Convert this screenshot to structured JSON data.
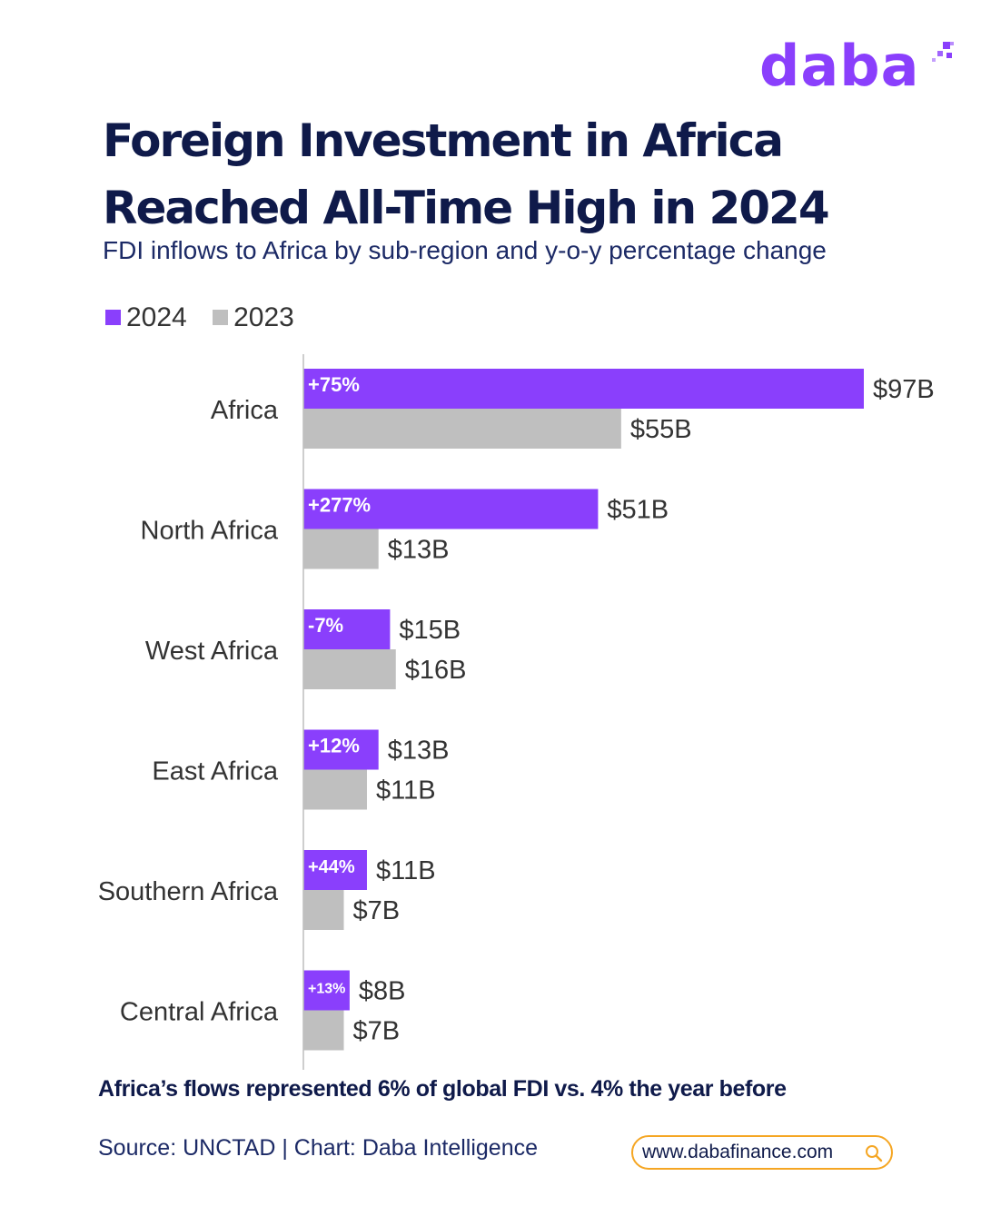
{
  "brand": {
    "logo_text": "daba"
  },
  "title": {
    "line1": "Foreign Investment in Africa",
    "line2": "Reached All-Time High in 2024"
  },
  "subtitle": "FDI inflows to Africa by sub-region and y-o-y percentage change",
  "colors": {
    "brand": "#8a3ffc",
    "series_2024": "#8a3ffc",
    "series_2023": "#bfbfbf",
    "title": "#0f1a4a",
    "accent": "#f5a623"
  },
  "chart_data": {
    "type": "bar",
    "orientation": "horizontal",
    "legend_position": "top-left",
    "grid": false,
    "units": "USD billions",
    "xlim": [
      0,
      97
    ],
    "categories": [
      "Africa",
      "North Africa",
      "West Africa",
      "East Africa",
      "Southern Africa",
      "Central Africa"
    ],
    "series": [
      {
        "name": "2024",
        "values": [
          97,
          51,
          15,
          13,
          11,
          8
        ],
        "labels": [
          "$97B",
          "$51B",
          "$15B",
          "$13B",
          "$11B",
          "$8B"
        ],
        "change_labels": [
          "+75%",
          "+277%",
          "-7%",
          "+12%",
          "+44%",
          "+13%"
        ]
      },
      {
        "name": "2023",
        "values": [
          55,
          13,
          16,
          11,
          7,
          7
        ],
        "labels": [
          "$55B",
          "$13B",
          "$16B",
          "$11B",
          "$7B",
          "$7B"
        ]
      }
    ]
  },
  "note": "Africa’s flows represented 6% of global FDI vs. 4% the year before",
  "source": "Source: UNCTAD | Chart: Daba Intelligence",
  "website": {
    "text": "www.dabafinance.com",
    "icon": "search-icon"
  }
}
